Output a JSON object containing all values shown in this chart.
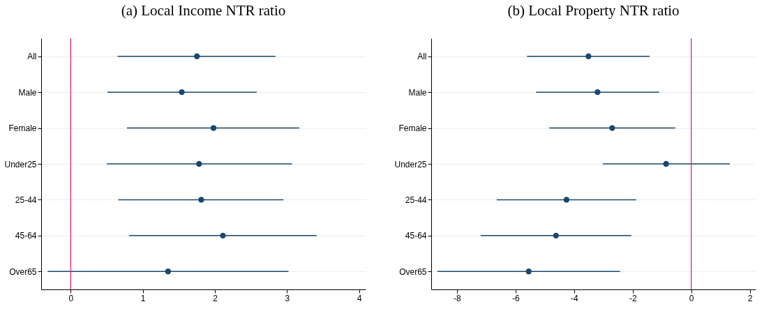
{
  "chart_data": [
    {
      "type": "scatter",
      "orientation": "horizontal",
      "title": "(a) Local Income NTR ratio",
      "categories": [
        "All",
        "Male",
        "Female",
        "Under25",
        "25-44",
        "45-64",
        "Over65"
      ],
      "values": [
        1.75,
        1.54,
        1.98,
        1.78,
        1.81,
        2.11,
        1.35
      ],
      "errors": [
        [
          0.65,
          2.84
        ],
        [
          0.51,
          2.58
        ],
        [
          0.78,
          3.17
        ],
        [
          0.5,
          3.07
        ],
        [
          0.66,
          2.95
        ],
        [
          0.81,
          3.41
        ],
        [
          -0.32,
          3.02
        ]
      ],
      "color": "#1a476f",
      "marker": "circle",
      "grid": "y",
      "xlim": [
        -0.41,
        4.09
      ],
      "xticks": [
        0,
        1,
        2,
        3,
        4
      ],
      "ref_lines": [
        {
          "axis": "x",
          "value": 0,
          "color": "#e0184f"
        }
      ]
    },
    {
      "type": "scatter",
      "orientation": "horizontal",
      "title": "(b) Local Property NTR ratio",
      "categories": [
        "All",
        "Male",
        "Female",
        "Under25",
        "25-44",
        "45-64",
        "Over65"
      ],
      "values": [
        -3.51,
        -3.2,
        -2.7,
        -0.86,
        -4.26,
        -4.62,
        -5.55
      ],
      "errors": [
        [
          -5.61,
          -1.42
        ],
        [
          -5.3,
          -1.1
        ],
        [
          -4.85,
          -0.55
        ],
        [
          -3.02,
          1.32
        ],
        [
          -6.64,
          -1.88
        ],
        [
          -7.19,
          -2.05
        ],
        [
          -8.67,
          -2.43
        ]
      ],
      "color": "#1a476f",
      "marker": "circle",
      "grid": "y",
      "xlim": [
        -8.88,
        2.2
      ],
      "xticks": [
        -8,
        -6,
        -4,
        -2,
        0,
        2
      ],
      "ref_lines": [
        {
          "axis": "x",
          "value": 0,
          "color": "#e0184f"
        }
      ]
    }
  ]
}
